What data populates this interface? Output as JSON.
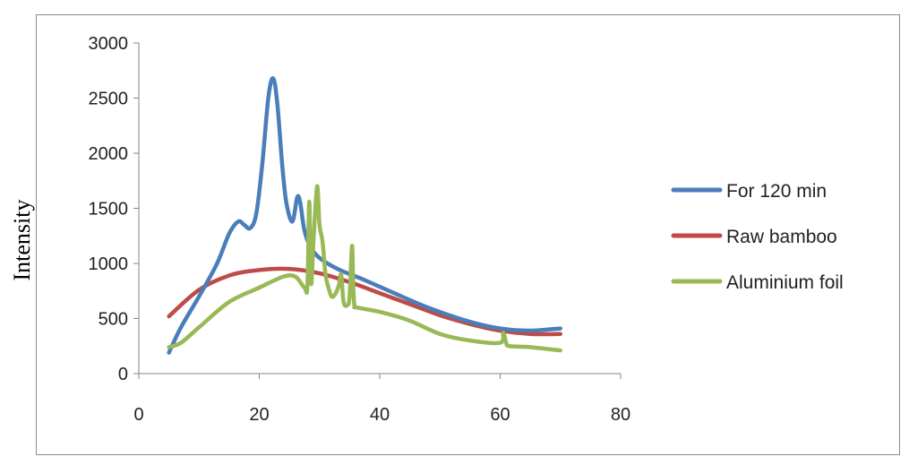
{
  "chart_data": {
    "type": "line",
    "title": "",
    "xlabel": "",
    "ylabel": "Intensity",
    "xlim": [
      0,
      80
    ],
    "ylim": [
      0,
      3000
    ],
    "xticks": [
      0,
      20,
      40,
      60,
      80
    ],
    "yticks": [
      0,
      500,
      1000,
      1500,
      2000,
      2500,
      3000
    ],
    "grid": false,
    "legend_position": "right",
    "series": [
      {
        "name": "For 120 min",
        "color": "#4a7ebb",
        "x": [
          5,
          7,
          10,
          13,
          15,
          16.5,
          17.5,
          18.5,
          19.5,
          20.5,
          21.5,
          22.3,
          23,
          23.8,
          24.5,
          25.5,
          26.3,
          26.8,
          27.5,
          28.5,
          30,
          33,
          37,
          42,
          48,
          55,
          60,
          65,
          70
        ],
        "y": [
          190,
          420,
          700,
          1000,
          1270,
          1380,
          1350,
          1320,
          1450,
          1900,
          2500,
          2680,
          2450,
          1900,
          1550,
          1380,
          1600,
          1550,
          1300,
          1150,
          1050,
          950,
          860,
          740,
          600,
          470,
          410,
          390,
          410
        ]
      },
      {
        "name": "Raw bamboo",
        "color": "#be4b48",
        "x": [
          5,
          10,
          15,
          20,
          25,
          30,
          35,
          40,
          45,
          50,
          55,
          60,
          65,
          70
        ],
        "y": [
          520,
          760,
          890,
          940,
          950,
          910,
          830,
          730,
          630,
          530,
          450,
          390,
          360,
          360
        ]
      },
      {
        "name": "Aluminium foil",
        "color": "#98b954",
        "x": [
          5,
          7,
          10,
          15,
          20,
          24,
          26,
          27.5,
          28,
          28.3,
          28.6,
          29,
          29.6,
          30,
          30.5,
          31,
          31.5,
          32,
          32.6,
          33.2,
          33.6,
          34,
          34.6,
          35,
          35.4,
          35.6,
          35.8,
          36.2,
          40,
          45,
          50,
          55,
          60,
          60.5,
          61,
          61.5,
          65,
          70
        ],
        "y": [
          240,
          280,
          420,
          650,
          780,
          880,
          880,
          780,
          800,
          1560,
          820,
          1200,
          1700,
          1350,
          1200,
          900,
          780,
          700,
          720,
          800,
          900,
          650,
          620,
          700,
          1160,
          800,
          620,
          600,
          560,
          480,
          360,
          300,
          280,
          370,
          280,
          250,
          240,
          210
        ]
      }
    ]
  }
}
